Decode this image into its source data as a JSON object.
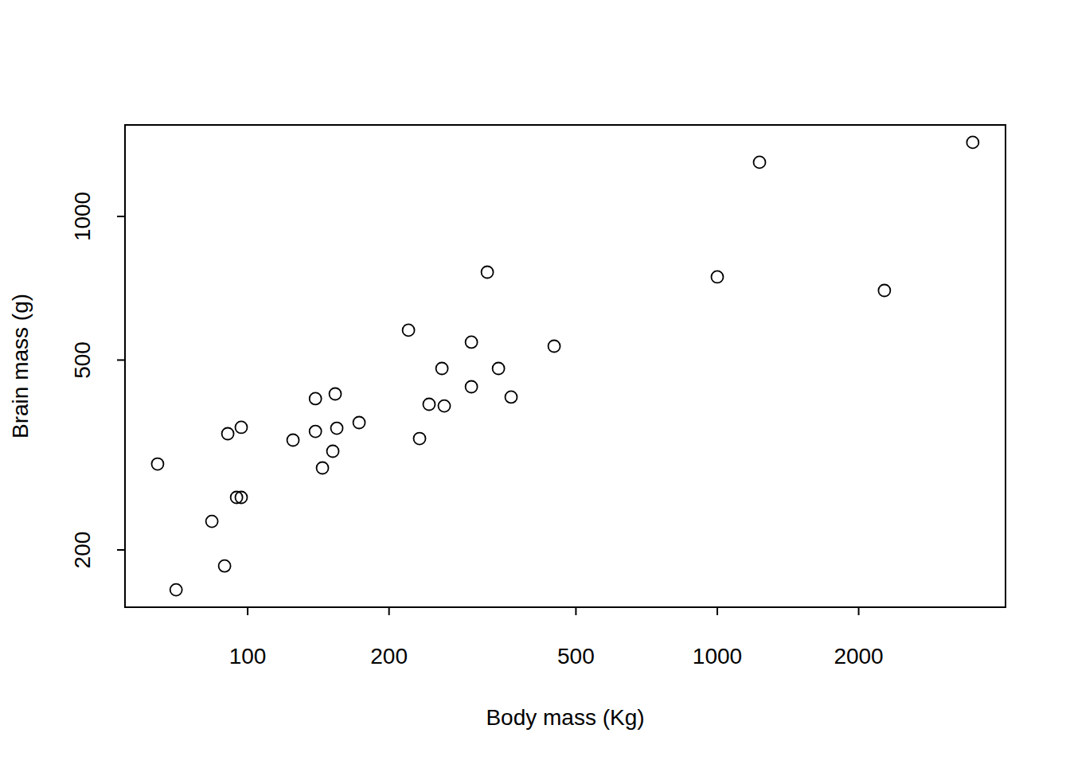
{
  "chart_data": {
    "type": "scatter",
    "log": true,
    "x_label": "Body mass (Kg)",
    "y_label": "Brain mass (g)",
    "x": [
      64.3,
      70.4,
      83.9,
      89.3,
      90.7,
      94.7,
      96.9,
      96.9,
      124.9,
      139.4,
      139.4,
      144.3,
      151.8,
      153.6,
      154.8,
      172.7,
      220.0,
      232.3,
      243.4,
      259.2,
      262.2,
      299.5,
      299.5,
      323.8,
      342.0,
      363.9,
      449.4,
      1000,
      1230,
      2269,
      3499
    ],
    "values": [
      302.8,
      165.0,
      229.6,
      185.1,
      350.4,
      257.7,
      257.7,
      361.4,
      339.8,
      415.0,
      354.4,
      297.1,
      322.0,
      424.6,
      359.9,
      369.8,
      577.5,
      342.4,
      403.9,
      480.1,
      400.7,
      545.1,
      439.5,
      764.1,
      480.1,
      418.2,
      534.6,
      746.8,
      1298.6,
      699.5,
      1429.6
    ],
    "color": "#000000",
    "marker": "open-circle",
    "xlim": [
      54.8,
      4109
    ],
    "ylim": [
      151.7,
      1555
    ],
    "xticks": [
      100,
      200,
      500,
      1000,
      2000
    ],
    "yticks": [
      200,
      500,
      1000
    ],
    "grid": false
  }
}
